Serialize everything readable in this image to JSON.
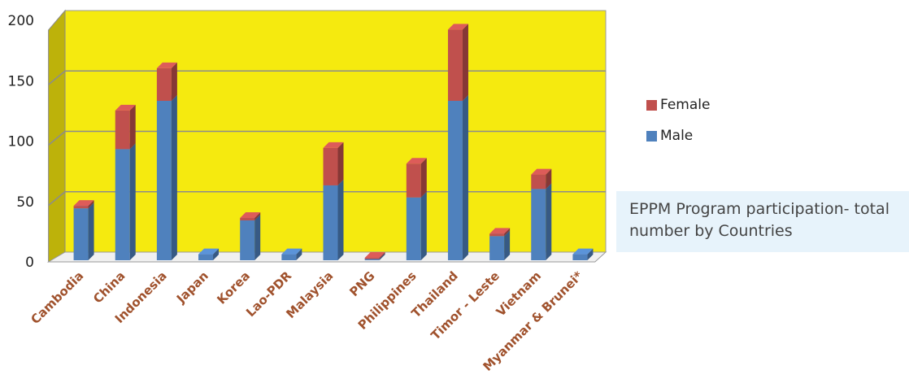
{
  "chart_data": {
    "type": "bar",
    "stacked": true,
    "three_d": true,
    "categories": [
      "Cambodia",
      "China",
      "Indonesia",
      "Japan",
      "Korea",
      "Lao-PDR",
      "Malaysia",
      "PNG",
      "Philippines",
      "Thailand",
      "Timor - Leste",
      "Vietnam",
      "Myanmar & Brunei*"
    ],
    "series": [
      {
        "name": "Male",
        "values": [
          43,
          92,
          132,
          5,
          33,
          5,
          62,
          1,
          52,
          132,
          20,
          59,
          5
        ],
        "color": "#4f81bd"
      },
      {
        "name": "Female",
        "values": [
          2,
          32,
          27,
          0,
          2,
          0,
          31,
          1,
          28,
          59,
          2,
          12,
          0
        ],
        "color": "#c0504d"
      }
    ],
    "ylim": [
      0,
      200
    ],
    "yticks": [
      "0",
      "50",
      "100",
      "150",
      "200"
    ],
    "grid": true,
    "legend_position": "right",
    "background_color": "#f5ea0f",
    "category_label_color": "#a0522d"
  },
  "caption": "EPPM Program participation- total number by Countries"
}
